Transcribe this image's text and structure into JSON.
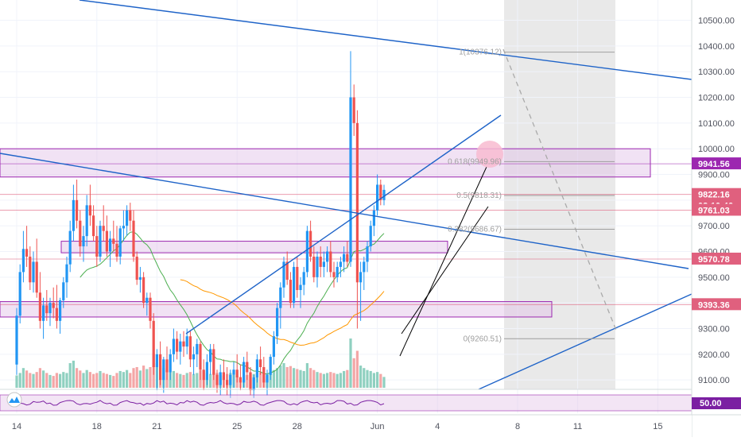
{
  "chart_data": {
    "type": "candlestick",
    "y_axis": {
      "ticks": [
        9100,
        9200,
        9300,
        9400,
        9500,
        9600,
        9700,
        9800,
        9900,
        10000,
        10100,
        10200,
        10300,
        10400,
        10500
      ],
      "tick_labels": [
        "9100.00",
        "9200.00",
        "9300.00",
        "9400.00",
        "9500.00",
        "9600.00",
        "9700.00",
        "9800.00",
        "9900.00",
        "10000.00",
        "10100.00",
        "10200.00",
        "10300.00",
        "10400.00",
        "10500.00"
      ],
      "range": [
        9000,
        10560
      ],
      "price_tags": [
        {
          "value": 9941.56,
          "label": "9941.56",
          "color": "#9c27b0"
        },
        {
          "value": 9822.16,
          "label": "9822.16",
          "sublabel": "02:10:46",
          "color": "#e0607e"
        },
        {
          "value": 9761.03,
          "label": "9761.03",
          "color": "#e0607e"
        },
        {
          "value": 9570.78,
          "label": "9570.78",
          "color": "#e0607e"
        },
        {
          "value": 9393.36,
          "label": "9393.36",
          "color": "#e0607e"
        }
      ]
    },
    "x_axis": {
      "ticks": [
        {
          "label": "14",
          "bar": 0
        },
        {
          "label": "18",
          "bar": 24
        },
        {
          "label": "21",
          "bar": 42
        },
        {
          "label": "25",
          "bar": 66
        },
        {
          "label": "28",
          "bar": 84
        },
        {
          "label": "Jun",
          "bar": 108
        },
        {
          "label": "4",
          "bar": 126
        },
        {
          "label": "8",
          "bar": 150
        },
        {
          "label": "11",
          "bar": 168
        },
        {
          "label": "15",
          "bar": 192
        }
      ]
    },
    "candles": [
      [
        9160,
        9380,
        9120,
        9350
      ],
      [
        9350,
        9550,
        9320,
        9520
      ],
      [
        9520,
        9680,
        9480,
        9610
      ],
      [
        9610,
        9700,
        9540,
        9580
      ],
      [
        9580,
        9620,
        9450,
        9480
      ],
      [
        9480,
        9600,
        9440,
        9560
      ],
      [
        9560,
        9650,
        9420,
        9440
      ],
      [
        9440,
        9520,
        9300,
        9330
      ],
      [
        9330,
        9420,
        9260,
        9390
      ],
      [
        9390,
        9450,
        9330,
        9360
      ],
      [
        9360,
        9420,
        9310,
        9400
      ],
      [
        9400,
        9460,
        9340,
        9380
      ],
      [
        9380,
        9470,
        9300,
        9330
      ],
      [
        9330,
        9420,
        9280,
        9410
      ],
      [
        9410,
        9500,
        9380,
        9480
      ],
      [
        9480,
        9580,
        9420,
        9550
      ],
      [
        9550,
        9720,
        9520,
        9680
      ],
      [
        9680,
        9860,
        9640,
        9800
      ],
      [
        9800,
        9880,
        9690,
        9720
      ],
      [
        9720,
        9760,
        9580,
        9620
      ],
      [
        9620,
        9700,
        9560,
        9660
      ],
      [
        9660,
        9820,
        9620,
        9780
      ],
      [
        9780,
        9860,
        9700,
        9740
      ],
      [
        9740,
        9780,
        9640,
        9660
      ],
      [
        9660,
        9700,
        9540,
        9580
      ],
      [
        9580,
        9720,
        9560,
        9700
      ],
      [
        9700,
        9780,
        9640,
        9680
      ],
      [
        9680,
        9740,
        9580,
        9600
      ],
      [
        9600,
        9680,
        9540,
        9650
      ],
      [
        9650,
        9720,
        9600,
        9630
      ],
      [
        9630,
        9700,
        9560,
        9580
      ],
      [
        9580,
        9700,
        9550,
        9690
      ],
      [
        9690,
        9760,
        9640,
        9700
      ],
      [
        9700,
        9780,
        9660,
        9760
      ],
      [
        9760,
        9790,
        9680,
        9720
      ],
      [
        9720,
        9760,
        9560,
        9580
      ],
      [
        9580,
        9600,
        9470,
        9490
      ],
      [
        9490,
        9540,
        9440,
        9500
      ],
      [
        9500,
        9520,
        9380,
        9400
      ],
      [
        9400,
        9440,
        9350,
        9420
      ],
      [
        9420,
        9440,
        9300,
        9330
      ],
      [
        9330,
        9360,
        9120,
        9150
      ],
      [
        9150,
        9220,
        9060,
        9200
      ],
      [
        9200,
        9250,
        9080,
        9100
      ],
      [
        9100,
        9190,
        9050,
        9180
      ],
      [
        9180,
        9230,
        9100,
        9130
      ],
      [
        9130,
        9220,
        9100,
        9200
      ],
      [
        9200,
        9300,
        9170,
        9260
      ],
      [
        9260,
        9290,
        9180,
        9210
      ],
      [
        9210,
        9280,
        9160,
        9250
      ],
      [
        9250,
        9290,
        9190,
        9230
      ],
      [
        9230,
        9300,
        9200,
        9270
      ],
      [
        9270,
        9290,
        9150,
        9180
      ],
      [
        9180,
        9230,
        9120,
        9200
      ],
      [
        9200,
        9260,
        9150,
        9240
      ],
      [
        9240,
        9250,
        9100,
        9140
      ],
      [
        9140,
        9180,
        9060,
        9100
      ],
      [
        9100,
        9200,
        9080,
        9170
      ],
      [
        9170,
        9240,
        9120,
        9220
      ],
      [
        9220,
        9240,
        9100,
        9120
      ],
      [
        9120,
        9140,
        9050,
        9080
      ],
      [
        9080,
        9160,
        9040,
        9130
      ],
      [
        9130,
        9180,
        9070,
        9100
      ],
      [
        9100,
        9150,
        9040,
        9080
      ],
      [
        9080,
        9140,
        9030,
        9120
      ],
      [
        9120,
        9170,
        9070,
        9140
      ],
      [
        9140,
        9200,
        9090,
        9110
      ],
      [
        9110,
        9160,
        9060,
        9090
      ],
      [
        9090,
        9190,
        9070,
        9170
      ],
      [
        9170,
        9210,
        9100,
        9130
      ],
      [
        9130,
        9150,
        9040,
        9060
      ],
      [
        9060,
        9120,
        9030,
        9110
      ],
      [
        9110,
        9200,
        9090,
        9180
      ],
      [
        9180,
        9230,
        9120,
        9150
      ],
      [
        9150,
        9190,
        9070,
        9090
      ],
      [
        9090,
        9140,
        9040,
        9120
      ],
      [
        9120,
        9200,
        9100,
        9190
      ],
      [
        9190,
        9290,
        9160,
        9270
      ],
      [
        9270,
        9400,
        9240,
        9380
      ],
      [
        9380,
        9480,
        9300,
        9460
      ],
      [
        9460,
        9580,
        9420,
        9560
      ],
      [
        9560,
        9600,
        9470,
        9490
      ],
      [
        9490,
        9520,
        9380,
        9400
      ],
      [
        9400,
        9560,
        9380,
        9540
      ],
      [
        9540,
        9580,
        9420,
        9450
      ],
      [
        9450,
        9500,
        9380,
        9470
      ],
      [
        9470,
        9540,
        9430,
        9520
      ],
      [
        9520,
        9700,
        9500,
        9680
      ],
      [
        9680,
        9720,
        9560,
        9580
      ],
      [
        9580,
        9620,
        9480,
        9500
      ],
      [
        9500,
        9600,
        9460,
        9580
      ],
      [
        9580,
        9620,
        9500,
        9540
      ],
      [
        9540,
        9600,
        9500,
        9560
      ],
      [
        9560,
        9620,
        9520,
        9600
      ],
      [
        9600,
        9640,
        9500,
        9520
      ],
      [
        9520,
        9560,
        9460,
        9500
      ],
      [
        9500,
        9560,
        9480,
        9540
      ],
      [
        9540,
        9580,
        9500,
        9560
      ],
      [
        9560,
        9620,
        9520,
        9590
      ],
      [
        9590,
        9640,
        9540,
        9560
      ],
      [
        9560,
        10380,
        9540,
        10200
      ],
      [
        10200,
        10250,
        10050,
        10100
      ],
      [
        10100,
        10150,
        9300,
        9480
      ],
      [
        9480,
        9560,
        9330,
        9520
      ],
      [
        9520,
        9580,
        9450,
        9560
      ],
      [
        9560,
        9640,
        9520,
        9620
      ],
      [
        9620,
        9720,
        9600,
        9700
      ],
      [
        9700,
        9780,
        9660,
        9760
      ],
      [
        9760,
        9900,
        9740,
        9860
      ],
      [
        9860,
        9880,
        9780,
        9800
      ],
      [
        9800,
        9860,
        9780,
        9840
      ]
    ],
    "volume": [
      0.25,
      0.3,
      0.4,
      0.35,
      0.3,
      0.28,
      0.32,
      0.4,
      0.35,
      0.3,
      0.26,
      0.24,
      0.3,
      0.28,
      0.32,
      0.3,
      0.5,
      0.55,
      0.4,
      0.35,
      0.3,
      0.36,
      0.32,
      0.28,
      0.3,
      0.34,
      0.3,
      0.28,
      0.26,
      0.24,
      0.3,
      0.34,
      0.32,
      0.36,
      0.3,
      0.4,
      0.42,
      0.35,
      0.45,
      0.38,
      0.42,
      0.7,
      0.5,
      0.45,
      0.4,
      0.36,
      0.32,
      0.34,
      0.3,
      0.28,
      0.26,
      0.3,
      0.32,
      0.28,
      0.3,
      0.36,
      0.34,
      0.3,
      0.28,
      0.32,
      0.3,
      0.26,
      0.24,
      0.28,
      0.3,
      0.26,
      0.24,
      0.22,
      0.28,
      0.26,
      0.3,
      0.28,
      0.3,
      0.32,
      0.3,
      0.28,
      0.3,
      0.36,
      0.4,
      0.45,
      0.5,
      0.42,
      0.44,
      0.4,
      0.38,
      0.36,
      0.34,
      0.5,
      0.4,
      0.36,
      0.32,
      0.3,
      0.28,
      0.3,
      0.32,
      0.3,
      0.28,
      0.3,
      0.34,
      0.36,
      1.0,
      0.6,
      0.75,
      0.45,
      0.4,
      0.36,
      0.34,
      0.3,
      0.32,
      0.28,
      0.22
    ],
    "fibonacci": [
      {
        "label": "1(10376.12)",
        "value": 10376.12
      },
      {
        "label": "0.618(9949.96)",
        "value": 9949.96
      },
      {
        "label": "0.5(9818.31)",
        "value": 9818.31
      },
      {
        "label": "0.382(9686.67)",
        "value": 9686.67
      },
      {
        "label": "0(9260.51)",
        "value": 9260.51
      }
    ],
    "rsi": {
      "label": "50.00",
      "level": 50
    }
  }
}
